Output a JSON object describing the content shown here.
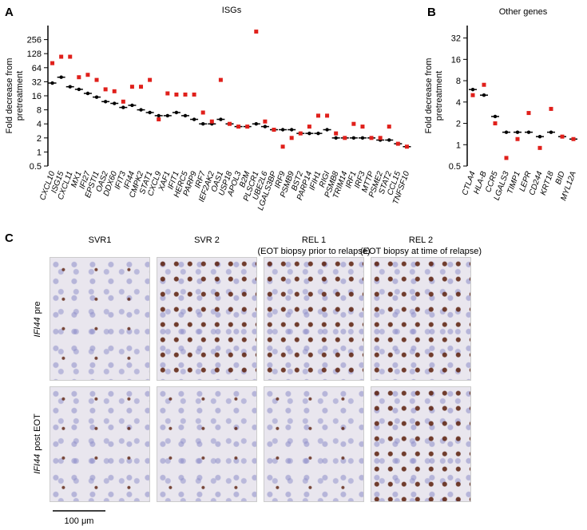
{
  "chart_data": [
    {
      "type": "scatter",
      "panel": "A",
      "title": "ISGs",
      "ylabel": [
        "Fold decrease from",
        "pretreatment"
      ],
      "log_base": 2,
      "ylim": [
        0.5,
        512
      ],
      "yticks": [
        0.5,
        1,
        2,
        4,
        8,
        16,
        32,
        64,
        128,
        256
      ],
      "categories": [
        "CXCL10",
        "ISG15",
        "CXCL11",
        "MX1",
        "IFI27",
        "EPSTI1",
        "OAS2",
        "DDX60",
        "IFIT3",
        "IFI44",
        "CMPK2",
        "STAT1",
        "CXCL9",
        "XAF1",
        "IFIT1",
        "HERC5",
        "PARP9",
        "IRF7",
        "IEF2AK2",
        "OAS1",
        "USP18",
        "APOL3",
        "B2M",
        "PLSCR1",
        "UBE2L6",
        "LGALS3BP",
        "IRF9",
        "PSMB9",
        "BST2",
        "PARP14",
        "IFIH1",
        "RIGI",
        "PSMB8",
        "TRIM14",
        "IRF1",
        "IRF3",
        "MTTP",
        "PSME2",
        "STAT2",
        "CCL15",
        "TNFSF10"
      ],
      "series": [
        {
          "color": "#000000",
          "marker": "mean-line",
          "values": [
            30,
            40,
            25,
            22,
            18,
            15,
            12,
            11,
            9,
            10,
            8,
            7,
            6,
            6,
            7,
            6,
            5,
            4,
            4,
            5,
            4,
            3.5,
            3.5,
            4,
            3.5,
            3,
            3,
            3,
            2.5,
            2.5,
            2.5,
            3,
            2,
            2,
            2,
            2,
            2,
            1.8,
            1.8,
            1.5,
            1.3
          ]
        },
        {
          "color": "#e0201b",
          "marker": "square",
          "values": [
            80,
            110,
            110,
            40,
            45,
            35,
            22,
            20,
            12,
            25,
            25,
            35,
            5,
            18,
            17,
            17,
            17,
            7,
            4.5,
            35,
            4,
            3.5,
            3.5,
            380,
            4.5,
            3,
            1.3,
            2,
            2.5,
            3.5,
            6,
            6,
            2.5,
            2,
            4,
            3.5,
            2,
            2,
            3.5,
            1.5,
            1.3
          ]
        }
      ]
    },
    {
      "type": "scatter",
      "panel": "B",
      "title": "Other genes",
      "ylabel": [
        "Fold decrease from",
        "pretreatment"
      ],
      "log_base": 2,
      "ylim": [
        0.5,
        48
      ],
      "yticks": [
        0.5,
        1,
        2,
        4,
        8,
        16,
        32
      ],
      "categories": [
        "CTLA4",
        "HLA-B",
        "CCR5",
        "LGALS3",
        "TIMP1",
        "LEPR",
        "CD244",
        "KRT18",
        "BID",
        "MYL12A"
      ],
      "series": [
        {
          "color": "#000000",
          "marker": "mean-line",
          "values": [
            6,
            5,
            2.5,
            1.5,
            1.5,
            1.5,
            1.3,
            1.5,
            1.3,
            1.2
          ]
        },
        {
          "color": "#e0201b",
          "marker": "square",
          "values": [
            5,
            7,
            2,
            0.65,
            1.2,
            2.8,
            0.9,
            3.2,
            1.3,
            1.2
          ]
        }
      ]
    }
  ],
  "histology": {
    "panel": "C",
    "columns": [
      {
        "title": "SVR1"
      },
      {
        "title": "SVR 2"
      },
      {
        "title": "REL 1",
        "subtitle": "(EOT biopsy prior to relapse)"
      },
      {
        "title": "REL 2",
        "subtitle": "(EOT biopsy at time of relapse)"
      }
    ],
    "rows": [
      {
        "gene": "IFI44",
        "label": "pre"
      },
      {
        "gene": "IFI44",
        "label": "post EOT"
      }
    ],
    "scale_bar": "100 μm"
  }
}
